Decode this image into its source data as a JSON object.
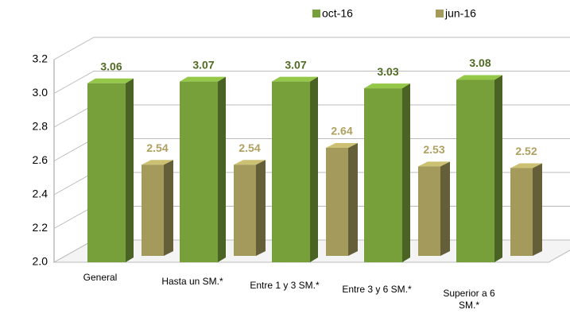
{
  "chart_data": {
    "type": "bar",
    "categories": [
      "General",
      "Hasta un SM.*",
      "Entre 1 y 3 SM.*",
      "Entre 3 y 6 SM.*",
      "Superior a 6 SM.*"
    ],
    "series": [
      {
        "name": "oct-16",
        "color": "#77a03a",
        "values": [
          3.06,
          3.07,
          3.07,
          3.03,
          3.08
        ]
      },
      {
        "name": "jun-16",
        "color": "#a39a5c",
        "values": [
          2.54,
          2.54,
          2.64,
          2.53,
          2.52
        ]
      }
    ],
    "ylim": [
      2.0,
      3.2
    ],
    "yticks": [
      {
        "value": 2.0,
        "label": "2.0"
      },
      2.2,
      2.4,
      2.6,
      2.8,
      {
        "value": 3.0,
        "label": "3.0"
      },
      3.2
    ],
    "grid": true
  }
}
